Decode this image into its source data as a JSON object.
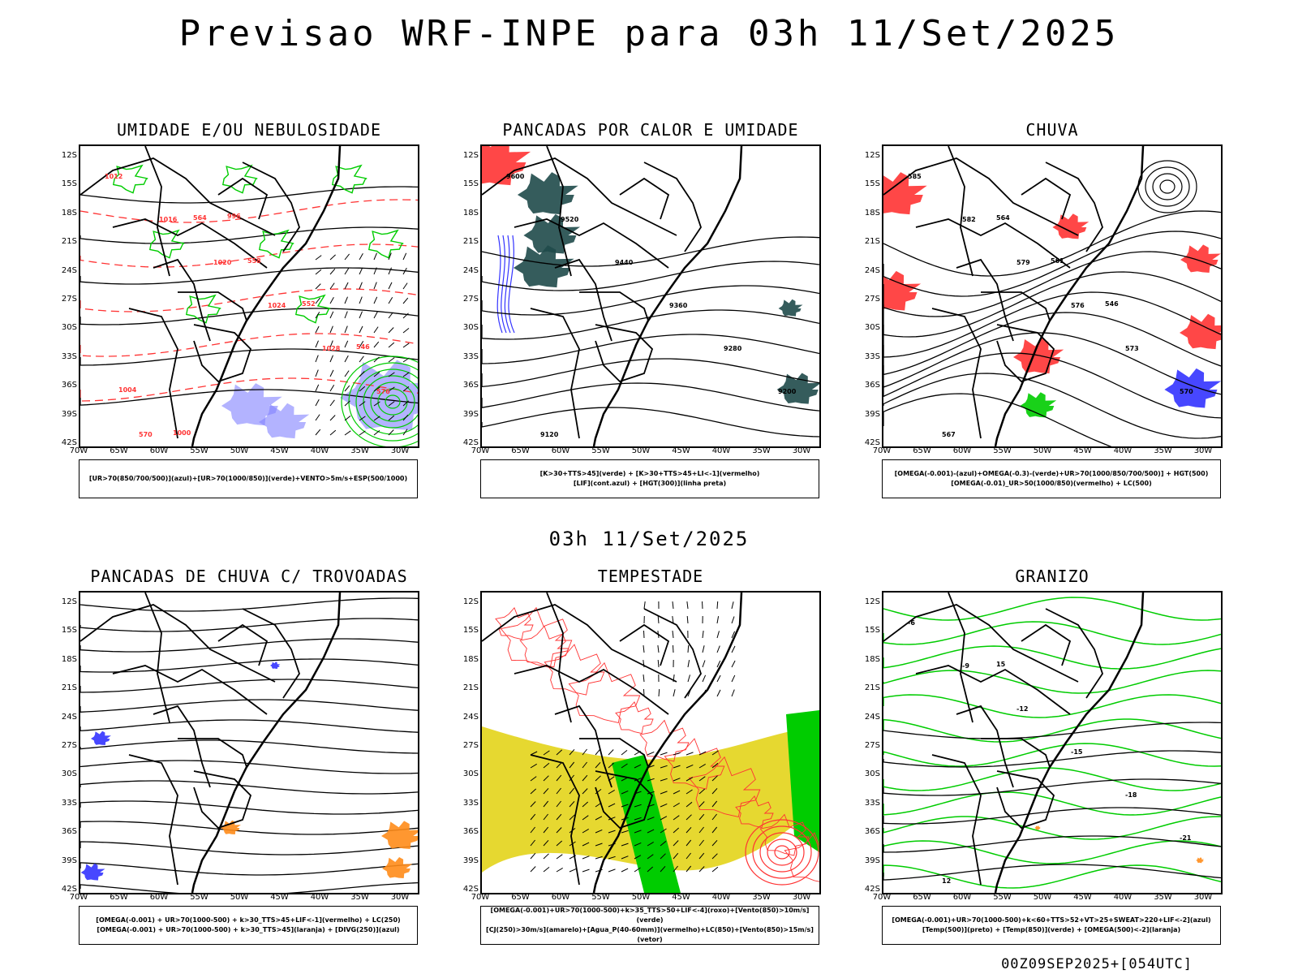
{
  "title": "Previsao WRF-INPE  para 03h 11/Set/2025",
  "subtitle": "03h 11/Set/2025",
  "footer": "00Z09SEP2025+[054UTC]",
  "axes": {
    "lat_ticks": [
      "12S",
      "15S",
      "18S",
      "21S",
      "24S",
      "27S",
      "30S",
      "33S",
      "36S",
      "39S",
      "42S"
    ],
    "lon_ticks": [
      "70W",
      "65W",
      "60W",
      "55W",
      "50W",
      "45W",
      "40W",
      "35W",
      "30W"
    ]
  },
  "colors": {
    "green": "#00cc00",
    "red": "#ff3333",
    "blue": "#3333ff",
    "dark_teal": "#1f4a4a",
    "yellow": "#e6d830",
    "orange": "#ff8c1a"
  },
  "panels": [
    {
      "title": "UMIDADE E/OU NEBULOSIDADE",
      "legend_lines": [
        "[UR>70(850/700/500)](azul)+[UR>70(1000/850)](verde)+VENTO>5m/s+ESP(500/1000)"
      ],
      "labels": [
        "1012",
        "1016",
        "1020",
        "1024",
        "1028",
        "576",
        "570",
        "564",
        "558",
        "552",
        "546",
        "1004",
        "1000",
        "996"
      ]
    },
    {
      "title": "PANCADAS POR CALOR E UMIDADE",
      "legend_lines": [
        "[K>30+TTS>45](verde) + [K>30+TTS>45+LI<-1](vermelho)",
        "[LIF](cont.azul) + [HGT(300)](linha preta)"
      ],
      "labels": [
        "9600",
        "9520",
        "9440",
        "9360",
        "9280",
        "9200",
        "9120"
      ]
    },
    {
      "title": "CHUVA",
      "legend_lines": [
        "[OMEGA(-0.001)-(azul)+OMEGA(-0.3)-(verde)+UR>70(1000/850/700/500)] + HGT(500)",
        "[OMEGA(-0.01)_UR>50(1000/850)(vermelho) + LC(500)"
      ],
      "labels": [
        "585",
        "582",
        "579",
        "576",
        "573",
        "570",
        "567",
        "564",
        "561",
        "546"
      ]
    },
    {
      "title": "PANCADAS DE CHUVA C/ TROVOADAS",
      "legend_lines": [
        "[OMEGA(-0.001) + UR>70(1000-500) + k>30_TTS>45+LIF<-1](vermelho) + LC(250)",
        "[OMEGA(-0.001) + UR>70(1000-500) + k>30_TTS>45](laranja) + [DIVG(250)](azul)"
      ],
      "labels": []
    },
    {
      "title": "TEMPESTADE",
      "legend_lines": [
        "[OMEGA(-0.001)+UR>70(1000-500)+k>35_TTS>50+LIF<-4](roxo)+[Vento(850)>10m/s](verde)",
        "[CJ(250)>30m/s](amarelo)+[Agua_P(40-60mm)](vermelho)+LC(850)+[Vento(850)>15m/s](vetor)"
      ],
      "labels": []
    },
    {
      "title": "GRANIZO",
      "legend_lines": [
        "[OMEGA(-0.001)+UR>70(1000-500)+k<60+TTS>52+VT>25+SWEAT>220+LIF<-2](azul)",
        "[Temp(500)](preto) + [Temp(850)](verde) + [OMEGA(500)<-2](laranja)"
      ],
      "labels": [
        "-6",
        "-9",
        "-12",
        "-15",
        "-18",
        "-21",
        "12",
        "15"
      ]
    }
  ]
}
